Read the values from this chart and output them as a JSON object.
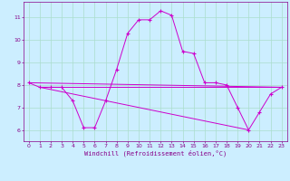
{
  "background_color": "#cceeff",
  "grid_color": "#aaddcc",
  "line_color": "#cc00cc",
  "marker_color": "#cc00cc",
  "xlabel": "Windchill (Refroidissement éolien,°C)",
  "xlim": [
    -0.5,
    23.5
  ],
  "ylim": [
    5.5,
    11.7
  ],
  "yticks": [
    6,
    7,
    8,
    9,
    10,
    11
  ],
  "xticks": [
    0,
    1,
    2,
    3,
    4,
    5,
    6,
    7,
    8,
    9,
    10,
    11,
    12,
    13,
    14,
    15,
    16,
    17,
    18,
    19,
    20,
    21,
    22,
    23
  ],
  "series": {
    "main": {
      "x": [
        0,
        1,
        2,
        3,
        4,
        5,
        6,
        7,
        8,
        9,
        10,
        11,
        12,
        13,
        14,
        15,
        16,
        17,
        18,
        19,
        20,
        21,
        22,
        23
      ],
      "y": [
        8.1,
        7.9,
        7.9,
        7.9,
        7.3,
        6.1,
        6.1,
        7.3,
        8.7,
        10.3,
        10.9,
        10.9,
        11.3,
        11.1,
        9.5,
        9.4,
        8.1,
        8.1,
        8.0,
        7.0,
        6.0,
        6.8,
        7.6,
        7.9
      ]
    },
    "line1": {
      "x": [
        0,
        23
      ],
      "y": [
        8.1,
        7.9
      ]
    },
    "line2": {
      "x": [
        1,
        20
      ],
      "y": [
        7.9,
        6.0
      ]
    },
    "line3": {
      "x": [
        1,
        23
      ],
      "y": [
        7.9,
        7.9
      ]
    }
  }
}
